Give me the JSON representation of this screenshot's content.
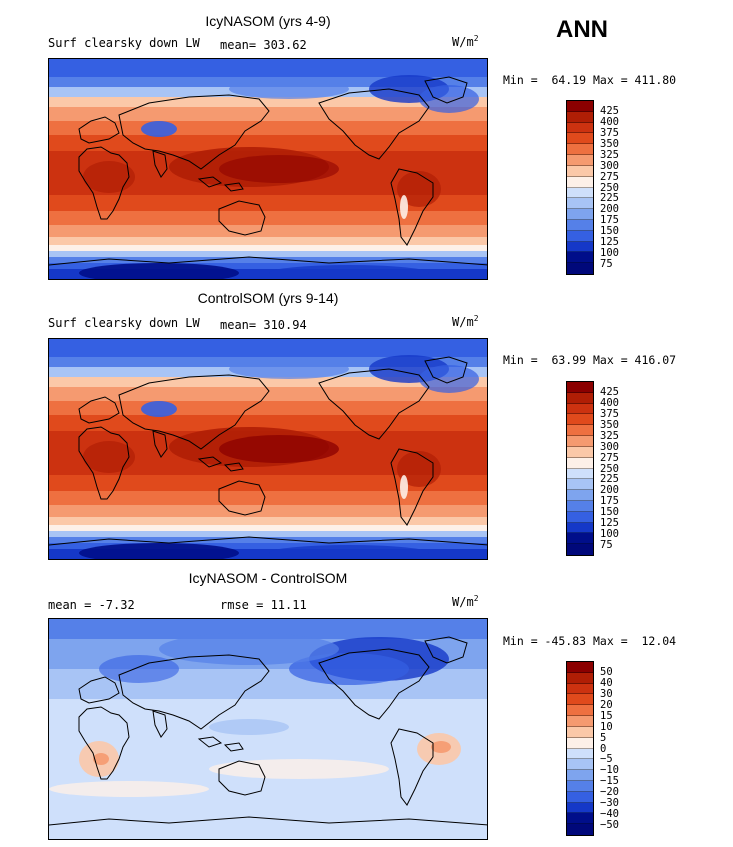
{
  "season": "ANN",
  "panels": [
    {
      "title": "IcyNASOM (yrs 4-9)",
      "subtitle_left": "Surf clearsky down LW",
      "mean": "mean= 303.62",
      "units": "W/m",
      "units_exp": "2",
      "minmax": "Min =  64.19 Max = 411.80",
      "palette": "abs"
    },
    {
      "title": "ControlSOM (yrs 9-14)",
      "subtitle_left": "Surf clearsky down LW",
      "mean": "mean= 310.94",
      "units": "W/m",
      "units_exp": "2",
      "minmax": "Min =  63.99 Max = 416.07",
      "palette": "abs"
    },
    {
      "title": "IcyNASOM - ControlSOM",
      "subtitle_left": "mean =  -7.32",
      "mean": "rmse =  11.11",
      "units": "W/m",
      "units_exp": "2",
      "minmax": "Min = -45.83 Max =  12.04",
      "palette": "diff"
    }
  ],
  "colorbars": {
    "abs_levels": [
      "425",
      "400",
      "375",
      "350",
      "325",
      "300",
      "275",
      "250",
      "225",
      "200",
      "175",
      "150",
      "125",
      "100",
      "75"
    ],
    "abs_colors": [
      "#8b0000",
      "#b01e05",
      "#cc3210",
      "#e04a1c",
      "#ee7040",
      "#f59a70",
      "#fbc8a8",
      "#fdf0e8",
      "#cfe0fb",
      "#a8c4f5",
      "#7ea4ee",
      "#5580e8",
      "#3560e2",
      "#1538c8",
      "#000e8a",
      "#00087a"
    ],
    "diff_levels": [
      "50",
      "40",
      "30",
      "20",
      "15",
      "10",
      "5",
      "0",
      "−5",
      "−10",
      "−15",
      "−20",
      "−30",
      "−40",
      "−50"
    ],
    "diff_colors": [
      "#8b0000",
      "#b01e05",
      "#cc3210",
      "#e04a1c",
      "#ee7040",
      "#f59a70",
      "#fbc8a8",
      "#fdf0e8",
      "#cfe0fb",
      "#a8c4f5",
      "#7ea4ee",
      "#5580e8",
      "#3560e2",
      "#1538c8",
      "#000e8a",
      "#00087a"
    ]
  }
}
